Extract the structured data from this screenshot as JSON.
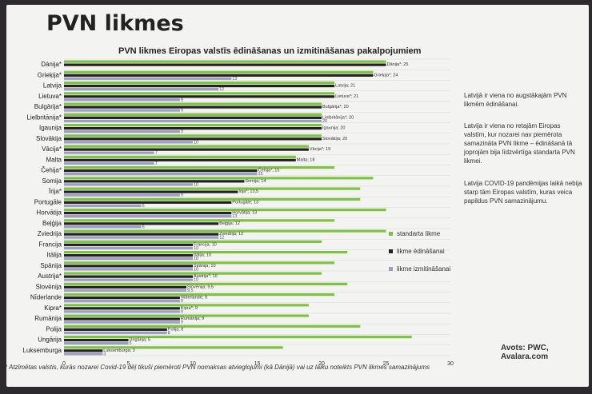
{
  "slide_title": "PVN likmes",
  "notes": [
    "Latvijā ir viena no augstākajām PVN likmēm ēdināšanai.",
    "Latvija ir viena no retajām Eiropas valstīm, kur nozarei nav piemērota samazināta PVN likme – ēdināšanā tā joprojām bija līdzvērtīga standarta PVN likmei.",
    "Latvija COVID-19 pandēmijas laikā nebija starp tām Eiropas valstīm, kuras veica papildus PVN samazinājumu."
  ],
  "source": "Avots: PWC, Avalara.com",
  "footnote": "* Atzīmētas valstis, kurās nozarei Covid-19 dēļ tikuši piemēroti PVN nomaksas atvieglojumi (kā Dānijā) vai uz laiku noteikts PVN likmes samazinājums",
  "colors": {
    "standard": "#7dc242",
    "catering": "#222222",
    "takeaway": "#9e9ec2"
  },
  "chart_data": {
    "type": "bar",
    "orientation": "horizontal",
    "title": "PVN likmes Eiropas valstīs ēdināšanas un izmitināšanas pakalpojumiem",
    "xlim": [
      0,
      30
    ],
    "xticks": [
      0,
      5,
      10,
      15,
      20,
      25,
      30
    ],
    "grid": true,
    "legend_position": "right",
    "categories": [
      "Dānija*",
      "Grieķija*",
      "Latvija",
      "Lietuva*",
      "Bulgārija*",
      "Lielbritānija*",
      "Igaunija",
      "Slovākija",
      "Vācija*",
      "Malta",
      "Čehija*",
      "Somija",
      "Īrija*",
      "Portugāle",
      "Horvātija",
      "Beļģija",
      "Zviedrija",
      "Francija",
      "Itālija",
      "Spānija",
      "Austrija*",
      "Slovēnija",
      "Nīderlande",
      "Kipra*",
      "Rumānija",
      "Polija",
      "Ungārija",
      "Luksemburga"
    ],
    "bar_labels": [
      "Dānija*; 25",
      "Grieķija*; 24",
      "Latvija; 21",
      "Lietuva*; 21",
      "Bulgārija*; 20",
      "Lielbritānija*; 20",
      "Igaunija; 20",
      "Slovākija; 20",
      "Vācija*; 19",
      "Malta; 18",
      "Čehija*; 15",
      "Somija; 14",
      "Īrija*; 13,5",
      "Portugāle; 13",
      "Horvātija; 13",
      "Beļģija; 12",
      "Zviedrija; 12",
      "Francija; 10",
      "Itālija; 10",
      "Spānija; 10",
      "Austrija*; 10",
      "Slovēnija; 9,5",
      "Nīderlande; 9",
      "Kipra*; 9",
      "Rumānija; 9",
      "Polija; 8",
      "Ungārija; 5",
      "Luksemburga; 3"
    ],
    "series": [
      {
        "name": "standarta likme",
        "values": [
          25,
          24,
          21,
          21,
          20,
          20,
          20,
          20,
          19,
          18,
          21,
          24,
          23,
          23,
          25,
          21,
          25,
          20,
          22,
          21,
          20,
          22,
          21,
          19,
          19,
          23,
          27,
          17
        ]
      },
      {
        "name": "likme ēdināšanai",
        "values": [
          25,
          24,
          21,
          21,
          20,
          20,
          20,
          20,
          19,
          18,
          15,
          14,
          13.5,
          13,
          13,
          12,
          12,
          10,
          10,
          10,
          10,
          9.5,
          9,
          9,
          9,
          8,
          5,
          3
        ]
      },
      {
        "name": "likme izmitināšanai",
        "values": [
          0,
          13,
          12,
          9,
          9,
          20,
          9,
          10,
          7,
          7,
          15,
          10,
          9,
          6,
          13,
          6,
          12,
          10,
          10,
          10,
          10,
          9.5,
          9,
          9,
          9,
          8,
          5,
          3
        ]
      }
    ],
    "takeaway_labels": [
      "",
      "13",
      "12",
      "9",
      "9",
      "20",
      "9",
      "10",
      "7",
      "7",
      "15",
      "10",
      "9",
      "6",
      "13",
      "6",
      "12",
      "10",
      "10",
      "10",
      "10",
      "9,5",
      "9",
      "9",
      "9",
      "8",
      "5",
      "3"
    ]
  }
}
